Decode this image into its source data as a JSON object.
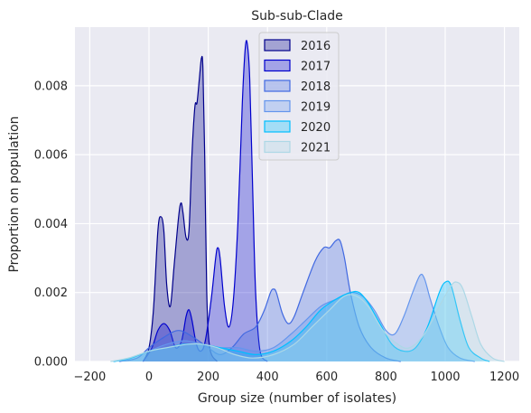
{
  "chart_data": {
    "type": "area",
    "title": "Sub-sub-Clade",
    "xlabel": "Group size (number of isolates)",
    "ylabel": "Proportion on population",
    "xlim": [
      -250,
      1250
    ],
    "ylim": [
      0,
      0.0097
    ],
    "x_ticks": [
      -200,
      0,
      200,
      400,
      600,
      800,
      1000,
      1200
    ],
    "x_tick_labels": [
      "−200",
      "0",
      "200",
      "400",
      "600",
      "800",
      "1000",
      "1200"
    ],
    "y_ticks": [
      0.0,
      0.002,
      0.004,
      0.006,
      0.008
    ],
    "y_tick_labels": [
      "0.000",
      "0.002",
      "0.004",
      "0.006",
      "0.008"
    ],
    "grid": true,
    "legend_position": "top-center",
    "series": [
      {
        "name": "2016",
        "color": "#00008b",
        "points": [
          [
            -20,
            0
          ],
          [
            0,
            0.0004
          ],
          [
            15,
            0.0015
          ],
          [
            30,
            0.0038
          ],
          [
            40,
            0.0042
          ],
          [
            50,
            0.0038
          ],
          [
            60,
            0.0022
          ],
          [
            72,
            0.0016
          ],
          [
            85,
            0.0028
          ],
          [
            100,
            0.0042
          ],
          [
            108,
            0.0046
          ],
          [
            115,
            0.0043
          ],
          [
            125,
            0.0036
          ],
          [
            135,
            0.0038
          ],
          [
            145,
            0.006
          ],
          [
            155,
            0.0074
          ],
          [
            162,
            0.0075
          ],
          [
            170,
            0.0082
          ],
          [
            177,
            0.0088
          ],
          [
            182,
            0.0085
          ],
          [
            188,
            0.006
          ],
          [
            195,
            0.002
          ],
          [
            205,
            0.0004
          ],
          [
            230,
            0
          ]
        ]
      },
      {
        "name": "2017",
        "color": "#0000cd",
        "points": [
          [
            -20,
            0
          ],
          [
            10,
            0.0004
          ],
          [
            30,
            0.0009
          ],
          [
            50,
            0.0011
          ],
          [
            70,
            0.0009
          ],
          [
            90,
            0.0004
          ],
          [
            110,
            0.0006
          ],
          [
            125,
            0.0013
          ],
          [
            135,
            0.0015
          ],
          [
            145,
            0.0012
          ],
          [
            160,
            0.0005
          ],
          [
            175,
            0.0003
          ],
          [
            190,
            0.0006
          ],
          [
            210,
            0.0018
          ],
          [
            225,
            0.003
          ],
          [
            232,
            0.0033
          ],
          [
            240,
            0.003
          ],
          [
            255,
            0.0016
          ],
          [
            270,
            0.001
          ],
          [
            285,
            0.0018
          ],
          [
            300,
            0.004
          ],
          [
            315,
            0.0075
          ],
          [
            325,
            0.0091
          ],
          [
            332,
            0.0092
          ],
          [
            340,
            0.0082
          ],
          [
            350,
            0.005
          ],
          [
            360,
            0.002
          ],
          [
            375,
            0.0003
          ],
          [
            400,
            0
          ]
        ]
      },
      {
        "name": "2018",
        "color": "#4169e1",
        "points": [
          [
            -100,
            0
          ],
          [
            -40,
            0.0001
          ],
          [
            0,
            0.0004
          ],
          [
            50,
            0.0007
          ],
          [
            100,
            0.0009
          ],
          [
            150,
            0.0007
          ],
          [
            200,
            0.0004
          ],
          [
            240,
            0.0002
          ],
          [
            280,
            0.0004
          ],
          [
            320,
            0.0008
          ],
          [
            360,
            0.001
          ],
          [
            390,
            0.0015
          ],
          [
            410,
            0.002
          ],
          [
            420,
            0.0021
          ],
          [
            430,
            0.002
          ],
          [
            450,
            0.0014
          ],
          [
            470,
            0.0011
          ],
          [
            490,
            0.0013
          ],
          [
            520,
            0.002
          ],
          [
            560,
            0.0029
          ],
          [
            590,
            0.0033
          ],
          [
            610,
            0.0033
          ],
          [
            630,
            0.0035
          ],
          [
            645,
            0.0035
          ],
          [
            660,
            0.003
          ],
          [
            680,
            0.002
          ],
          [
            710,
            0.001
          ],
          [
            750,
            0.0004
          ],
          [
            800,
            0.0001
          ],
          [
            850,
            0
          ]
        ]
      },
      {
        "name": "2019",
        "color": "#6495ed",
        "points": [
          [
            -120,
            0
          ],
          [
            -60,
            0.0001
          ],
          [
            0,
            0.0003
          ],
          [
            60,
            0.0005
          ],
          [
            120,
            0.0006
          ],
          [
            180,
            0.0005
          ],
          [
            240,
            0.0004
          ],
          [
            300,
            0.0004
          ],
          [
            360,
            0.0003
          ],
          [
            420,
            0.0004
          ],
          [
            480,
            0.0008
          ],
          [
            530,
            0.0012
          ],
          [
            580,
            0.0016
          ],
          [
            630,
            0.0018
          ],
          [
            680,
            0.002
          ],
          [
            720,
            0.0019
          ],
          [
            760,
            0.0015
          ],
          [
            800,
            0.0009
          ],
          [
            830,
            0.0008
          ],
          [
            860,
            0.0013
          ],
          [
            890,
            0.002
          ],
          [
            915,
            0.0025
          ],
          [
            930,
            0.0024
          ],
          [
            950,
            0.0018
          ],
          [
            980,
            0.001
          ],
          [
            1010,
            0.0004
          ],
          [
            1050,
            0.0001
          ],
          [
            1100,
            0
          ]
        ]
      },
      {
        "name": "2020",
        "color": "#00bfff",
        "points": [
          [
            -120,
            0
          ],
          [
            -60,
            0.0001
          ],
          [
            0,
            0.0003
          ],
          [
            60,
            0.0004
          ],
          [
            120,
            0.0005
          ],
          [
            180,
            0.0005
          ],
          [
            240,
            0.0004
          ],
          [
            300,
            0.0003
          ],
          [
            360,
            0.0002
          ],
          [
            420,
            0.0003
          ],
          [
            480,
            0.0006
          ],
          [
            530,
            0.001
          ],
          [
            580,
            0.0015
          ],
          [
            630,
            0.0018
          ],
          [
            680,
            0.002
          ],
          [
            710,
            0.002
          ],
          [
            740,
            0.0017
          ],
          [
            780,
            0.0011
          ],
          [
            820,
            0.0005
          ],
          [
            860,
            0.0003
          ],
          [
            900,
            0.0004
          ],
          [
            940,
            0.001
          ],
          [
            980,
            0.002
          ],
          [
            1000,
            0.0023
          ],
          [
            1020,
            0.0022
          ],
          [
            1050,
            0.0012
          ],
          [
            1080,
            0.0004
          ],
          [
            1120,
            0.0001
          ],
          [
            1150,
            0
          ]
        ]
      },
      {
        "name": "2021",
        "color": "#add8e6",
        "points": [
          [
            -130,
            0
          ],
          [
            -70,
            0.0001
          ],
          [
            0,
            0.0003
          ],
          [
            60,
            0.0004
          ],
          [
            130,
            0.0005
          ],
          [
            180,
            0.0005
          ],
          [
            230,
            0.0004
          ],
          [
            290,
            0.0002
          ],
          [
            350,
            0.0001
          ],
          [
            420,
            0.0002
          ],
          [
            490,
            0.0005
          ],
          [
            550,
            0.001
          ],
          [
            610,
            0.0015
          ],
          [
            660,
            0.0019
          ],
          [
            700,
            0.0019
          ],
          [
            740,
            0.0016
          ],
          [
            790,
            0.0009
          ],
          [
            840,
            0.0005
          ],
          [
            880,
            0.0004
          ],
          [
            930,
            0.0008
          ],
          [
            980,
            0.0016
          ],
          [
            1020,
            0.0022
          ],
          [
            1040,
            0.0023
          ],
          [
            1060,
            0.0021
          ],
          [
            1090,
            0.0013
          ],
          [
            1120,
            0.0005
          ],
          [
            1160,
            0.0001
          ],
          [
            1200,
            0
          ]
        ]
      }
    ]
  }
}
